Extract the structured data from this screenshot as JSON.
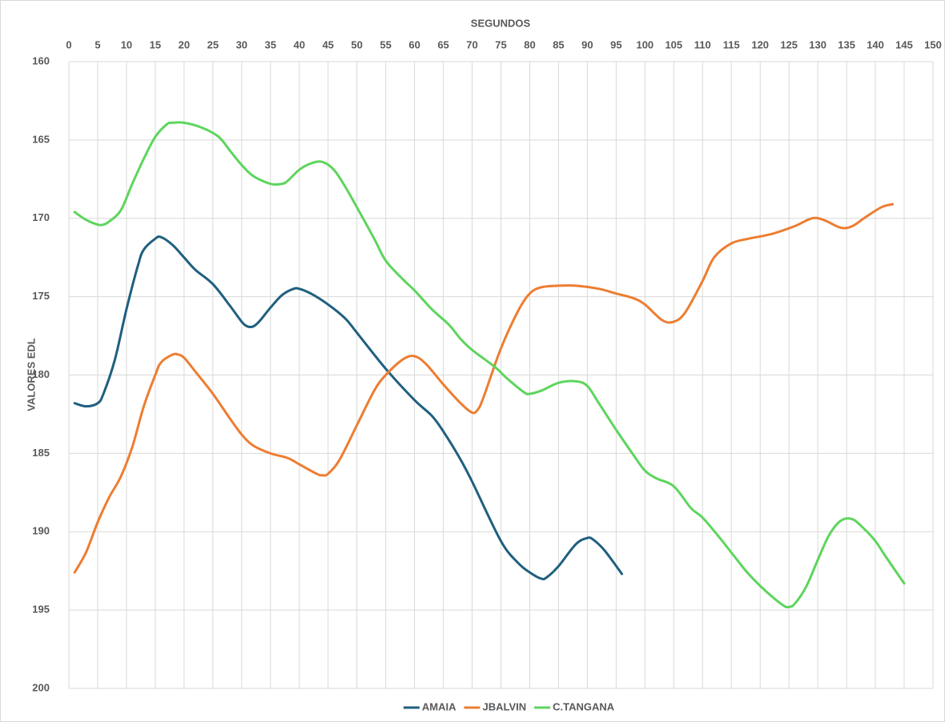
{
  "chart_data": {
    "type": "line",
    "xlabel": "SEGUNDOS",
    "ylabel": "VALORES EDL",
    "xlim": [
      0,
      150
    ],
    "xticks": [
      0,
      5,
      10,
      15,
      20,
      25,
      30,
      35,
      40,
      45,
      50,
      55,
      60,
      65,
      70,
      75,
      80,
      85,
      90,
      95,
      100,
      105,
      110,
      115,
      120,
      125,
      130,
      135,
      140,
      145,
      150
    ],
    "ylim": [
      160,
      200
    ],
    "yticks": [
      160,
      165,
      170,
      175,
      180,
      185,
      190,
      195,
      200
    ],
    "y_inverted": true,
    "x_axis_position": "top",
    "grid": true,
    "legend": "bottom",
    "series": [
      {
        "name": "AMAIA",
        "color": "#1f5f7f",
        "x": [
          1,
          3,
          5,
          6,
          8,
          10,
          12,
          13,
          15,
          16,
          18,
          20,
          22,
          25,
          28,
          30,
          31,
          32,
          33,
          35,
          37,
          39,
          40,
          42,
          45,
          48,
          50,
          55,
          60,
          63,
          65,
          68,
          70,
          75,
          78,
          80,
          82,
          83,
          85,
          88,
          90,
          91,
          93,
          96
        ],
        "values": [
          181.8,
          182.0,
          181.8,
          181.2,
          179,
          175.8,
          173,
          172,
          171.3,
          171.2,
          171.7,
          172.5,
          173.3,
          174.2,
          175.6,
          176.6,
          176.9,
          176.9,
          176.6,
          175.7,
          174.9,
          174.5,
          174.5,
          174.8,
          175.5,
          176.4,
          177.3,
          179.6,
          181.6,
          182.6,
          183.6,
          185.4,
          186.8,
          190.6,
          192.0,
          192.6,
          193.0,
          192.9,
          192.2,
          190.8,
          190.4,
          190.5,
          191.2,
          192.7
        ]
      },
      {
        "name": "JBALVIN",
        "color": "#ed7d31",
        "x": [
          1,
          3,
          5,
          7,
          9,
          11,
          13,
          15,
          16,
          18,
          19,
          20,
          22,
          25,
          28,
          30,
          32,
          35,
          38,
          40,
          43,
          44,
          45,
          47,
          50,
          53,
          55,
          58,
          60,
          62,
          65,
          68,
          70,
          71,
          72,
          75,
          78,
          80,
          82,
          85,
          88,
          92,
          95,
          98,
          100,
          103,
          105,
          107,
          110,
          112,
          115,
          118,
          122,
          126,
          129,
          131,
          134,
          136,
          138,
          141,
          143
        ],
        "values": [
          192.6,
          191.3,
          189.4,
          187.8,
          186.5,
          184.6,
          182,
          180,
          179.2,
          178.7,
          178.7,
          178.9,
          179.8,
          181.2,
          182.8,
          183.8,
          184.5,
          185,
          185.3,
          185.7,
          186.3,
          186.4,
          186.3,
          185.4,
          183.2,
          181,
          180,
          179,
          178.8,
          179.3,
          180.6,
          181.8,
          182.4,
          182.2,
          181.4,
          178.3,
          175.9,
          174.8,
          174.4,
          174.3,
          174.3,
          174.5,
          174.8,
          175.1,
          175.5,
          176.5,
          176.6,
          176,
          174,
          172.5,
          171.6,
          171.3,
          171,
          170.5,
          170,
          170.1,
          170.6,
          170.5,
          170,
          169.3,
          169.1
        ]
      },
      {
        "name": "C.TANGANA",
        "color": "#5dd55d",
        "x": [
          1,
          3,
          5,
          6,
          7,
          9,
          11,
          13,
          15,
          17,
          18,
          20,
          23,
          26,
          28,
          30,
          32,
          35,
          37,
          38,
          40,
          42,
          44,
          46,
          48,
          50,
          53,
          55,
          58,
          60,
          63,
          66,
          68,
          70,
          74,
          76,
          79,
          80,
          82,
          85,
          88,
          90,
          92,
          95,
          98,
          100,
          102,
          105,
          108,
          110,
          113,
          116,
          118,
          121,
          124,
          125,
          126,
          128,
          130,
          132,
          134,
          136,
          138,
          140,
          142,
          145
        ],
        "values": [
          169.6,
          170.1,
          170.4,
          170.4,
          170.2,
          169.5,
          167.8,
          166.2,
          164.8,
          164,
          163.9,
          163.9,
          164.2,
          164.8,
          165.7,
          166.6,
          167.3,
          167.8,
          167.8,
          167.6,
          166.9,
          166.5,
          166.4,
          166.9,
          168,
          169.3,
          171.3,
          172.7,
          173.9,
          174.6,
          175.8,
          176.8,
          177.7,
          178.4,
          179.5,
          180.2,
          181.1,
          181.2,
          181,
          180.5,
          180.4,
          180.7,
          181.8,
          183.5,
          185.1,
          186.1,
          186.6,
          187.1,
          188.5,
          189.1,
          190.4,
          191.8,
          192.7,
          193.8,
          194.7,
          194.8,
          194.6,
          193.5,
          191.8,
          190.2,
          189.3,
          189.2,
          189.8,
          190.6,
          191.7,
          193.3
        ]
      }
    ]
  }
}
